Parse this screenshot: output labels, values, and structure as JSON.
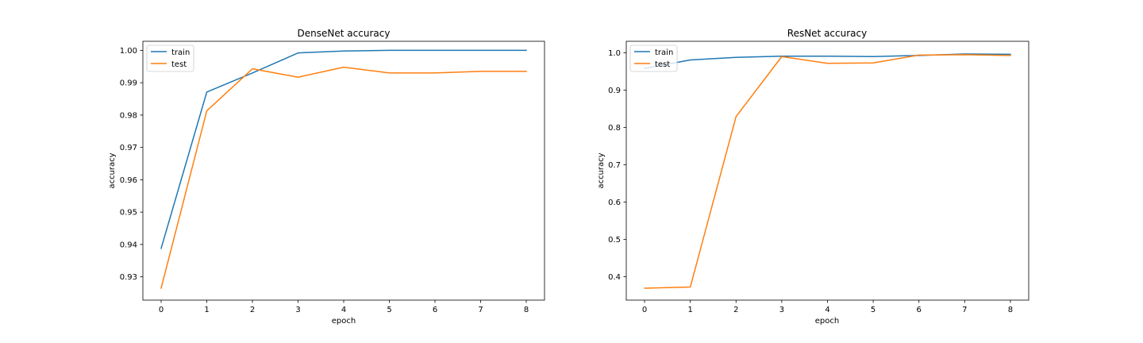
{
  "chart_data": [
    {
      "type": "line",
      "title": "DenseNet accuracy",
      "xlabel": "epoch",
      "ylabel": "accuracy",
      "x": [
        0,
        1,
        2,
        3,
        4,
        5,
        6,
        7,
        8
      ],
      "xticks": [
        0,
        1,
        2,
        3,
        4,
        5,
        6,
        7,
        8
      ],
      "xlim": [
        -0.4,
        8.4
      ],
      "yticks": [
        0.93,
        0.94,
        0.95,
        0.96,
        0.97,
        0.98,
        0.99,
        1.0
      ],
      "ytick_labels": [
        "0.93",
        "0.94",
        "0.95",
        "0.96",
        "0.97",
        "0.98",
        "0.99",
        "1.00"
      ],
      "ylim": [
        0.9228,
        1.0028
      ],
      "grid": false,
      "legend": "upper left",
      "series": [
        {
          "name": "train",
          "color": "#1f77b4",
          "values": [
            0.9388,
            0.9871,
            0.993,
            0.9992,
            0.9998,
            1.0,
            1.0,
            1.0,
            1.0
          ]
        },
        {
          "name": "test",
          "color": "#ff7f0e",
          "values": [
            0.9265,
            0.9813,
            0.9943,
            0.9917,
            0.9948,
            0.993,
            0.993,
            0.9935,
            0.9935
          ]
        }
      ]
    },
    {
      "type": "line",
      "title": "ResNet accuracy",
      "xlabel": "epoch",
      "ylabel": "accuracy",
      "x": [
        0,
        1,
        2,
        3,
        4,
        5,
        6,
        7,
        8
      ],
      "xticks": [
        0,
        1,
        2,
        3,
        4,
        5,
        6,
        7,
        8
      ],
      "xlim": [
        -0.4,
        8.4
      ],
      "yticks": [
        0.4,
        0.5,
        0.6,
        0.7,
        0.8,
        0.9,
        1.0
      ],
      "ytick_labels": [
        "0.4",
        "0.5",
        "0.6",
        "0.7",
        "0.8",
        "0.9",
        "1.0"
      ],
      "ylim": [
        0.337,
        1.031
      ],
      "grid": false,
      "legend": "upper left",
      "series": [
        {
          "name": "train",
          "color": "#1f77b4",
          "values": [
            0.958,
            0.981,
            0.988,
            0.991,
            0.991,
            0.99,
            0.993,
            0.997,
            0.996
          ]
        },
        {
          "name": "test",
          "color": "#ff7f0e",
          "values": [
            0.369,
            0.372,
            0.829,
            0.99,
            0.972,
            0.973,
            0.994,
            0.995,
            0.993
          ]
        }
      ]
    }
  ]
}
